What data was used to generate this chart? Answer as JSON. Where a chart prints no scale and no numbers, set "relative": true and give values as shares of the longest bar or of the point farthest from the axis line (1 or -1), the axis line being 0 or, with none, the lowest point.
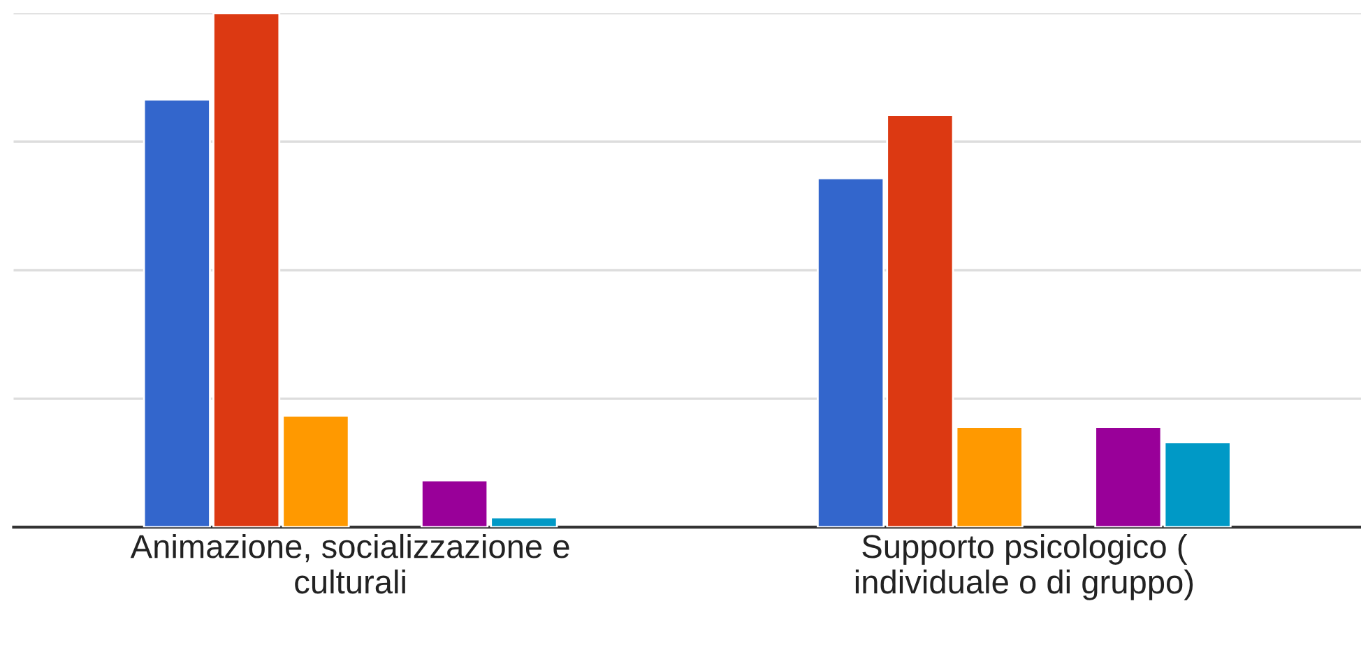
{
  "chart_data": {
    "type": "bar",
    "relative": true,
    "grid": "y",
    "tick_labels": "x",
    "categories": [
      "Animazione, socializzazione e\nculturali",
      "Supporto psicologico (\nindividuale o di gruppo)"
    ],
    "series": [
      {
        "color": "#3366cc",
        "values": [
          0.832,
          0.679
        ]
      },
      {
        "color": "#dc3912",
        "values": [
          1,
          0.802
        ]
      },
      {
        "color": "#ff9900",
        "values": [
          0.217,
          0.195
        ]
      },
      {
        "values": [
          null,
          null
        ]
      },
      {
        "color": "#990099",
        "values": [
          0.091,
          0.195
        ]
      },
      {
        "color": "#0099c6",
        "values": [
          0.019,
          0.165
        ]
      }
    ]
  }
}
